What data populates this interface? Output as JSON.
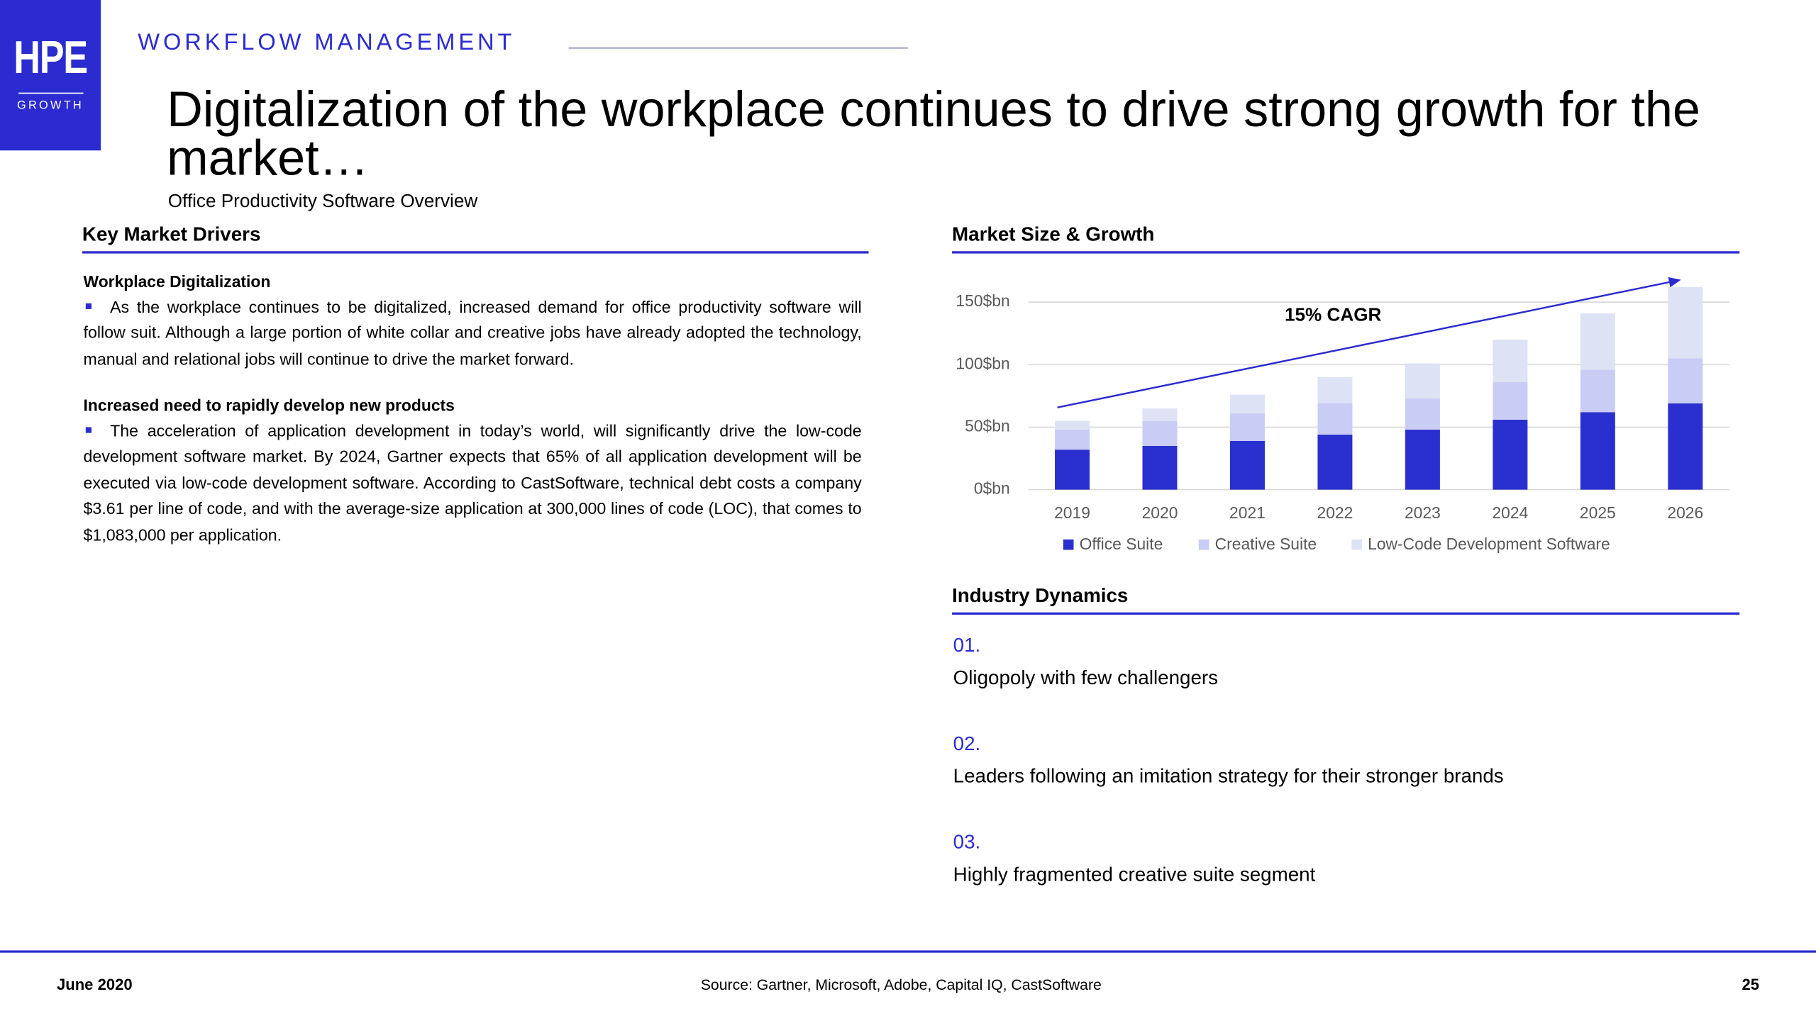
{
  "header": {
    "logo": "HPE",
    "logo_sub": "GROWTH",
    "section": "WORKFLOW MANAGEMENT",
    "title": "Digitalization of the workplace continues to drive strong growth for the market…",
    "subtitle": "Office Productivity Software Overview"
  },
  "drivers": {
    "heading": "Key Market Drivers",
    "items": [
      {
        "title": "Workplace Digitalization",
        "text": "As the workplace continues to be digitalized, increased demand for office productivity software will follow suit. Although a large portion of white collar and creative jobs have already adopted the technology, manual and relational jobs will continue to drive the market forward."
      },
      {
        "title": "Increased need to rapidly develop new products",
        "text": "The acceleration of application development in today’s world, will significantly drive the low-code development software market. By 2024, Gartner expects that 65% of all application development will be executed via low-code development software. According to CastSoftware, technical debt costs a company $3.61 per line of code, and with the average-size application at 300,000 lines of code (LOC), that comes to $1,083,000 per application."
      }
    ]
  },
  "chart_heading": "Market Size & Growth",
  "chart_data": {
    "type": "bar",
    "stacked": true,
    "annotation": "15% CAGR",
    "categories": [
      "2019",
      "2020",
      "2021",
      "2022",
      "2023",
      "2024",
      "2025",
      "2026"
    ],
    "series": [
      {
        "name": "Office Suite",
        "color": "#2a2fcf",
        "values": [
          32,
          35,
          39,
          44,
          48,
          56,
          62,
          69
        ]
      },
      {
        "name": "Creative Suite",
        "color": "#c9ccf5",
        "values": [
          16,
          20,
          22,
          25,
          25,
          30,
          34,
          36
        ]
      },
      {
        "name": "Low-Code Development Software",
        "color": "#dde3f5",
        "values": [
          7,
          10,
          15,
          21,
          28,
          34,
          45,
          57
        ]
      }
    ],
    "ylim": [
      0,
      165
    ],
    "yticks": [
      {
        "value": 0,
        "label": "0$bn"
      },
      {
        "value": 50,
        "label": "50$bn"
      },
      {
        "value": 100,
        "label": "100$bn"
      },
      {
        "value": 150,
        "label": "150$bn"
      }
    ],
    "grid": true,
    "legend": "bottom"
  },
  "dynamics": {
    "heading": "Industry Dynamics",
    "items": [
      {
        "number": "01.",
        "text": "Oligopoly with few challengers"
      },
      {
        "number": "02.",
        "text": "Leaders following an imitation strategy for their stronger brands"
      },
      {
        "number": "03.",
        "text": "Highly fragmented creative suite segment"
      }
    ]
  },
  "footer": {
    "date": "June 2020",
    "source": "Source: Gartner, Microsoft, Adobe, Capital IQ, CastSoftware",
    "page": "25"
  }
}
